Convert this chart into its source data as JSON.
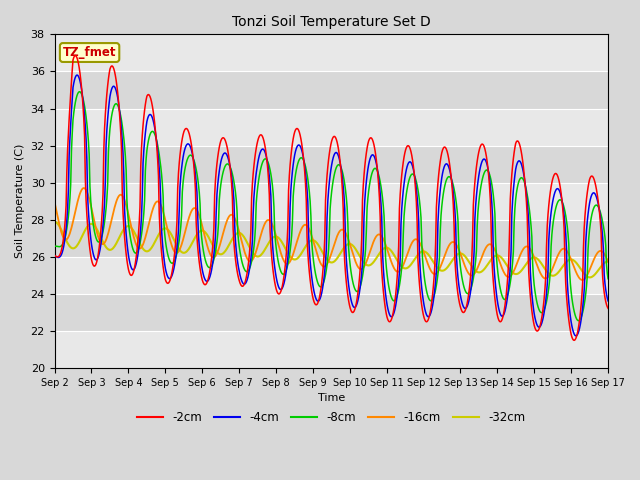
{
  "title": "Tonzi Soil Temperature Set D",
  "xlabel": "Time",
  "ylabel": "Soil Temperature (C)",
  "ylim": [
    20,
    38
  ],
  "series_colors": {
    "-2cm": "#ff0000",
    "-4cm": "#0000ee",
    "-8cm": "#00cc00",
    "-16cm": "#ff8800",
    "-32cm": "#cccc00"
  },
  "legend_label_box": "TZ_fmet",
  "legend_box_facecolor": "#ffffcc",
  "legend_box_edgecolor": "#999900",
  "annotation_text_color": "#cc0000",
  "tick_labels": [
    "Sep 2",
    "Sep 3",
    "Sep 4",
    "Sep 5",
    "Sep 6",
    "Sep 7",
    "Sep 8",
    "Sep 9",
    "Sep 10",
    "Sep 11",
    "Sep 12",
    "Sep 13",
    "Sep 14",
    "Sep 15",
    "Sep 16",
    "Sep 17"
  ],
  "grid_color": "#ffffff",
  "bg_color": "#e8e8e8"
}
